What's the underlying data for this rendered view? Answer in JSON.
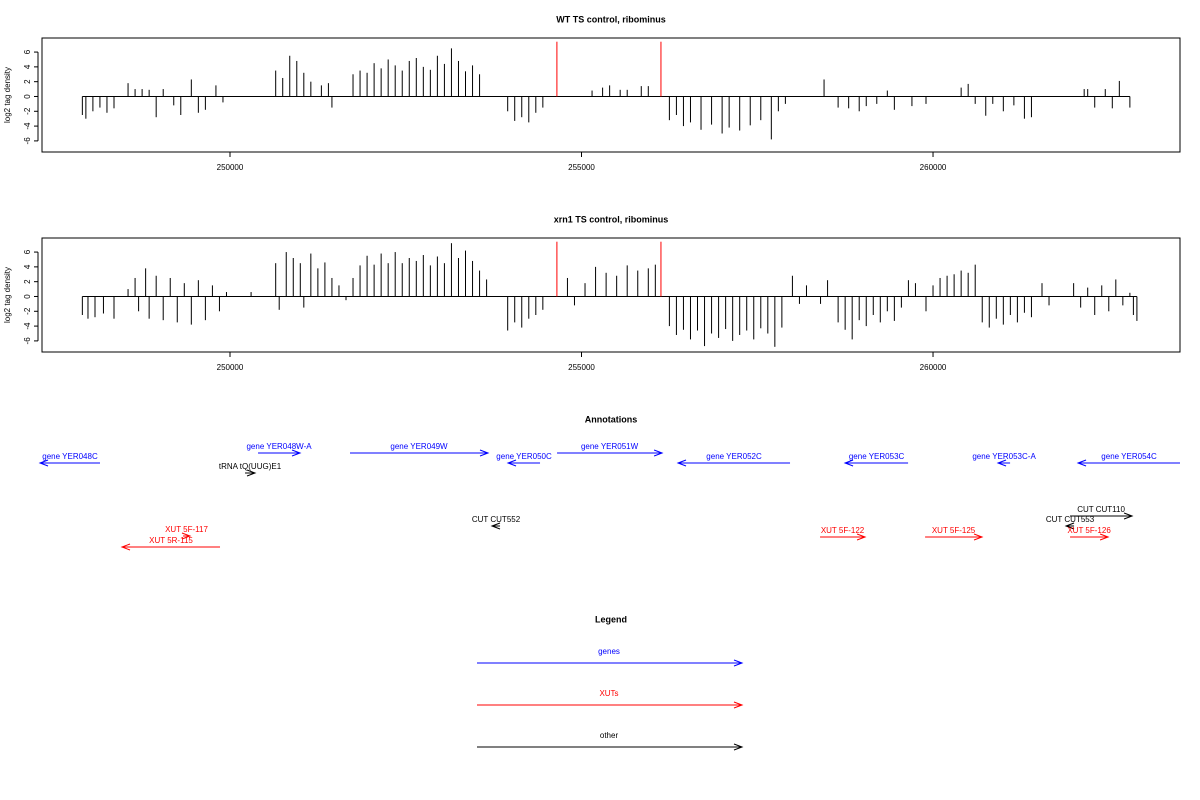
{
  "chart_data": [
    {
      "type": "bar",
      "title": "WT TS control, ribominus",
      "ylabel": "log2 tag density",
      "xlim": [
        247326,
        263513
      ],
      "xticks": [
        250000,
        255000,
        260000
      ],
      "ylim": [
        -7.5,
        7.9
      ],
      "yticks": [
        6,
        4,
        2,
        0,
        -2,
        -4,
        -6
      ],
      "series": [
        {
          "color": "#000000",
          "x": [
            247900,
            247950,
            248050,
            248150,
            248250,
            248350,
            248550,
            248650,
            248750,
            248850,
            248950,
            249050,
            249200,
            249300,
            249450,
            249550,
            249650,
            249800,
            249900,
            250650,
            250750,
            250850,
            250950,
            251050,
            251150,
            251300,
            251400,
            251450,
            251750,
            251850,
            251950,
            252050,
            252150,
            252250,
            252350,
            252450,
            252550,
            252650,
            252750,
            252850,
            252950,
            253050,
            253150,
            253250,
            253350,
            253450,
            253550,
            253950,
            254050,
            254150,
            254250,
            254350,
            254450,
            255150,
            255300,
            255400,
            255550,
            255650,
            255850,
            255950,
            256250,
            256350,
            256450,
            256550,
            256700,
            256850,
            257000,
            257100,
            257250,
            257400,
            257550,
            257700,
            257800,
            257900,
            258450,
            258650,
            258800,
            258950,
            259050,
            259200,
            259350,
            259450,
            259700,
            259900,
            260400,
            260500,
            260600,
            260750,
            260850,
            261000,
            261150,
            261300,
            261400,
            262150,
            262200,
            262300,
            262450,
            262550,
            262650,
            262800
          ],
          "values": [
            -2.5,
            -3,
            -2,
            -1.5,
            -2.2,
            -1.6,
            1.8,
            1,
            1,
            0.9,
            -2.8,
            1,
            -1.2,
            -2.5,
            2.3,
            -2.2,
            -1.8,
            1.5,
            -0.8,
            3.5,
            2.5,
            5.5,
            4.8,
            3.2,
            2,
            1.5,
            1.8,
            -1.5,
            3,
            3.5,
            3.2,
            4.5,
            3.8,
            5,
            4.2,
            3.5,
            4.8,
            5.2,
            4,
            3.6,
            5.5,
            4.4,
            6.5,
            4.8,
            3.4,
            4.2,
            3,
            -2,
            -3.3,
            -2.8,
            -3.5,
            -2.2,
            -1.5,
            0.8,
            1.2,
            1.5,
            0.9,
            0.9,
            1.4,
            1.4,
            -3.2,
            -2.5,
            -4,
            -3.5,
            -4.5,
            -3.8,
            -5,
            -4.2,
            -4.6,
            -3.9,
            -3.2,
            -5.8,
            -2,
            -1,
            2.3,
            -1.5,
            -1.6,
            -2,
            -1.3,
            -1,
            0.8,
            -1.8,
            -1.3,
            -1,
            1.2,
            1.7,
            -1,
            -2.6,
            -1,
            -2,
            -1.2,
            -3,
            -2.8,
            1,
            1,
            -1.5,
            1,
            -1.6,
            2.1,
            -1.5
          ]
        },
        {
          "color": "#ff0000",
          "x": [
            254650,
            256130
          ],
          "values": [
            7.4,
            7.4
          ]
        }
      ]
    },
    {
      "type": "bar",
      "title": "xrn1 TS control, ribominus",
      "ylabel": "log2 tag density",
      "xlim": [
        247326,
        263513
      ],
      "xticks": [
        250000,
        255000,
        260000
      ],
      "ylim": [
        -7.5,
        7.9
      ],
      "yticks": [
        6,
        4,
        2,
        0,
        -2,
        -4,
        -6
      ],
      "series": [
        {
          "color": "#000000",
          "x": [
            247900,
            247980,
            248080,
            248200,
            248350,
            248550,
            248650,
            248700,
            248800,
            248850,
            248950,
            249050,
            249150,
            249250,
            249350,
            249450,
            249550,
            249650,
            249750,
            249850,
            249950,
            250300,
            250650,
            250700,
            250800,
            250900,
            251000,
            251050,
            251150,
            251250,
            251350,
            251450,
            251550,
            251650,
            251750,
            251850,
            251950,
            252050,
            252150,
            252250,
            252350,
            252450,
            252550,
            252650,
            252750,
            252850,
            252950,
            253050,
            253150,
            253250,
            253350,
            253450,
            253550,
            253650,
            253950,
            254050,
            254150,
            254250,
            254350,
            254450,
            254800,
            254900,
            255050,
            255200,
            255350,
            255500,
            255650,
            255800,
            255950,
            256050,
            256250,
            256350,
            256450,
            256550,
            256650,
            256750,
            256850,
            256950,
            257050,
            257150,
            257250,
            257350,
            257450,
            257550,
            257650,
            257750,
            257850,
            258000,
            258100,
            258200,
            258400,
            258500,
            258650,
            258750,
            258850,
            258950,
            259050,
            259150,
            259250,
            259350,
            259450,
            259550,
            259650,
            259750,
            259900,
            260000,
            260100,
            260200,
            260300,
            260400,
            260500,
            260600,
            260700,
            260800,
            260900,
            261000,
            261100,
            261200,
            261300,
            261400,
            261550,
            261650,
            262000,
            262100,
            262200,
            262300,
            262400,
            262500,
            262600,
            262700,
            262800,
            262850,
            262900
          ],
          "values": [
            -2.5,
            -3,
            -2.8,
            -2.3,
            -3,
            1,
            2.5,
            -2,
            3.8,
            -3,
            2.8,
            -3.2,
            2.5,
            -3.5,
            1.8,
            -3.8,
            2.2,
            -3.2,
            1.5,
            -2,
            0.6,
            0.6,
            4.5,
            -1.8,
            6,
            5.2,
            4.5,
            -1.5,
            5.8,
            3.8,
            4.6,
            2.5,
            1.5,
            -0.5,
            2.5,
            4.2,
            5.5,
            4.3,
            5.8,
            4.5,
            6,
            4.5,
            5.2,
            4.8,
            5.6,
            4.2,
            5.4,
            4.5,
            7.2,
            5.2,
            6.2,
            4.8,
            3.5,
            2.3,
            -4.6,
            -3.5,
            -4.2,
            -3,
            -2.5,
            -1.8,
            2.5,
            -1.2,
            1.8,
            4,
            3.2,
            2.8,
            4.2,
            3.5,
            3.8,
            4.3,
            -4,
            -5.2,
            -4.5,
            -5.8,
            -4.6,
            -6.7,
            -5,
            -5.6,
            -4.4,
            -6,
            -5.2,
            -4.6,
            -5.8,
            -4.3,
            -5,
            -6.8,
            -4.2,
            2.8,
            -1,
            1.5,
            -1,
            2.2,
            -3.5,
            -4.5,
            -5.8,
            -3.2,
            -4,
            -2.5,
            -3.5,
            -2,
            -3.3,
            -1.5,
            2.2,
            1.8,
            -2,
            1.5,
            2.5,
            2.8,
            3,
            3.5,
            3.2,
            4.3,
            -3.5,
            -4.2,
            -3,
            -3.8,
            -2.5,
            -3.5,
            -2.2,
            -2.8,
            1.8,
            -1.2,
            1.8,
            -1.5,
            1.2,
            -2.5,
            1.5,
            -2,
            2.3,
            -1.2,
            0.5,
            -2.5,
            -3.3
          ]
        },
        {
          "color": "#ff0000",
          "x": [
            254650,
            256130
          ],
          "values": [
            7.4,
            7.4
          ]
        }
      ]
    }
  ],
  "annotations": {
    "title": "Annotations",
    "features": [
      {
        "label": "gene YER048C",
        "start": 247298,
        "end": 248151,
        "strand": "-",
        "color": "#0000ff"
      },
      {
        "label": "gene YER048W-A",
        "start": 250399,
        "end": 250996,
        "strand": "+",
        "color": "#0000ff"
      },
      {
        "label": "tRNA tQ(UUG)E1",
        "start": 250214,
        "end": 250356,
        "strand": "+",
        "color": "#000000"
      },
      {
        "label": "gene YER049W",
        "start": 251707,
        "end": 253670,
        "strand": "+",
        "color": "#0000ff"
      },
      {
        "label": "gene YER050C",
        "start": 253955,
        "end": 254410,
        "strand": "-",
        "color": "#0000ff"
      },
      {
        "label": "gene YER051W",
        "start": 254652,
        "end": 256146,
        "strand": "+",
        "color": "#0000ff"
      },
      {
        "label": "gene YER052C",
        "start": 256373,
        "end": 257966,
        "strand": "-",
        "color": "#0000ff"
      },
      {
        "label": "gene YER053C",
        "start": 258749,
        "end": 259645,
        "strand": "-",
        "color": "#0000ff"
      },
      {
        "label": "gene YER053C-A",
        "start": 260925,
        "end": 261096,
        "strand": "-",
        "color": "#0000ff"
      },
      {
        "label": "gene YER054C",
        "start": 262063,
        "end": 263700,
        "strand": "-",
        "color": "#0000ff"
      },
      {
        "label": "CUT CUT552",
        "start": 253727,
        "end": 253841,
        "strand": "-",
        "color": "#000000"
      },
      {
        "label": "CUT CUT110",
        "start": 261949,
        "end": 262831,
        "strand": "+",
        "color": "#000000"
      },
      {
        "label": "CUT CUT553",
        "start": 261892,
        "end": 262006,
        "strand": "-",
        "color": "#000000"
      },
      {
        "label": "XUT 5F-117",
        "start": 249332,
        "end": 249431,
        "strand": "+",
        "color": "#ff0000"
      },
      {
        "label": "XUT 5R-115",
        "start": 248464,
        "end": 249858,
        "strand": "-",
        "color": "#ff0000"
      },
      {
        "label": "XUT 5F-122",
        "start": 258393,
        "end": 259033,
        "strand": "+",
        "color": "#ff0000"
      },
      {
        "label": "XUT 5F-125",
        "start": 259887,
        "end": 260697,
        "strand": "+",
        "color": "#ff0000"
      },
      {
        "label": "XUT 5F-126",
        "start": 261949,
        "end": 262490,
        "strand": "+",
        "color": "#ff0000"
      }
    ]
  },
  "legend": {
    "title": "Legend",
    "entries": [
      {
        "label": "genes",
        "color": "#0000ff"
      },
      {
        "label": "XUTs",
        "color": "#ff0000"
      },
      {
        "label": "other",
        "color": "#000000"
      }
    ]
  }
}
